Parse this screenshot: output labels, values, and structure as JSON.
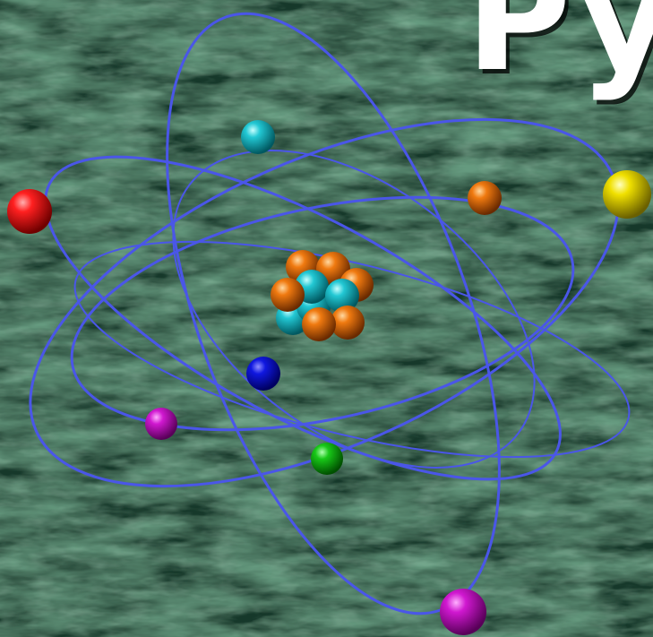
{
  "scene": {
    "title_fragment": "Py",
    "background_color": "#1f4a33",
    "background_texture": "mottled-green",
    "orbit_color": "#4a56e8",
    "nucleus": {
      "protons_color": "#1fb8c4",
      "neutrons_color": "#e8770f"
    },
    "electron_colors": {
      "red": "#e01010",
      "cyan": "#20b8c8",
      "orange": "#e06a0c",
      "yellow": "#e8d800",
      "blue": "#0a10d8",
      "magenta": "#c810c8",
      "green": "#10c010"
    }
  }
}
